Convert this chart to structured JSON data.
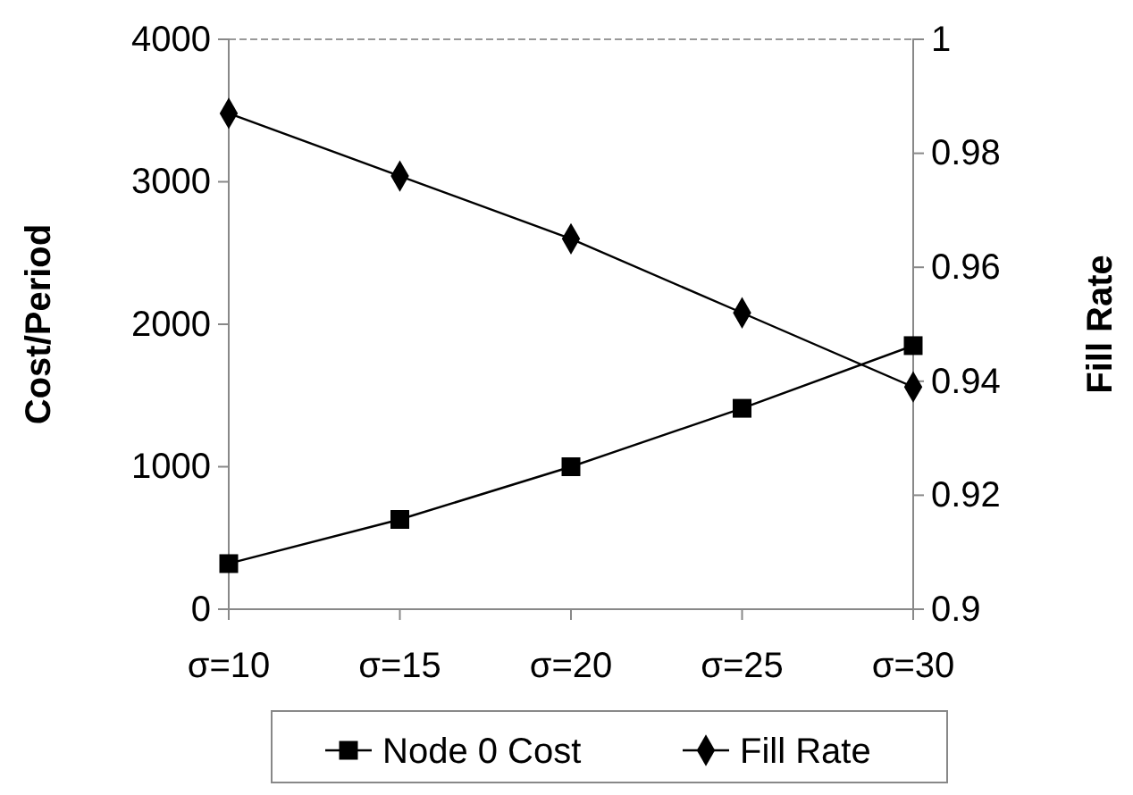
{
  "chart_data": {
    "type": "line",
    "categories": [
      "σ=10",
      "σ=15",
      "σ=20",
      "σ=25",
      "σ=30"
    ],
    "ylabel": "Cost/Period",
    "y2label": "Fill Rate",
    "ylim": [
      0,
      4000
    ],
    "yticks": [
      0,
      1000,
      2000,
      3000,
      4000
    ],
    "y2lim": [
      0.9,
      1
    ],
    "y2ticks": [
      {
        "value": 0.9,
        "label": "0.9"
      },
      {
        "value": 0.92,
        "label": "0.92"
      },
      {
        "value": 0.94,
        "label": "0.94"
      },
      {
        "value": 0.96,
        "label": "0.96"
      },
      {
        "value": 0.98,
        "label": "0.98"
      },
      {
        "value": 1,
        "label": "1"
      }
    ],
    "series": [
      {
        "name": "Node 0 Cost",
        "color": "#000000",
        "marker": "square",
        "values": [
          320,
          630,
          1000,
          1410,
          1850
        ]
      },
      {
        "name": "Fill Rate",
        "color": "#000000",
        "marker": "diamond",
        "axis": "y2",
        "values": [
          0.987,
          0.976,
          0.965,
          0.952,
          0.939
        ]
      }
    ],
    "legend": "bottom",
    "grid": false,
    "line_style": "solid"
  }
}
